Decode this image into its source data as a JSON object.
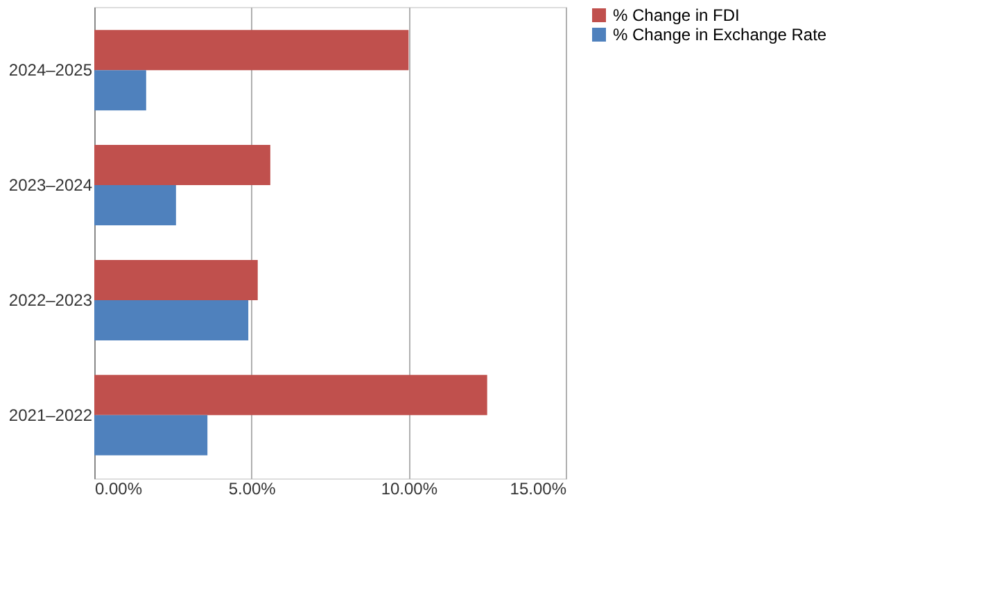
{
  "chart_data": {
    "type": "bar",
    "orientation": "horizontal",
    "categories": [
      "2024–2025",
      "2023–2024",
      "2022–2023",
      "2021–2022"
    ],
    "series": [
      {
        "name": "% Change in FDI",
        "color": "#c0504d",
        "values": [
          10.0,
          5.6,
          5.2,
          12.5
        ]
      },
      {
        "name": "% Change in Exchange Rate",
        "color": "#4f81bd",
        "values": [
          1.65,
          2.6,
          4.9,
          3.6
        ]
      }
    ],
    "xlim": [
      0,
      15
    ],
    "xticks": [
      {
        "value": 0,
        "label": "0.00%"
      },
      {
        "value": 5,
        "label": "5.00%"
      },
      {
        "value": 10,
        "label": "10.00%"
      },
      {
        "value": 15,
        "label": "15.00%"
      }
    ],
    "grid": "x",
    "legend": "right"
  }
}
